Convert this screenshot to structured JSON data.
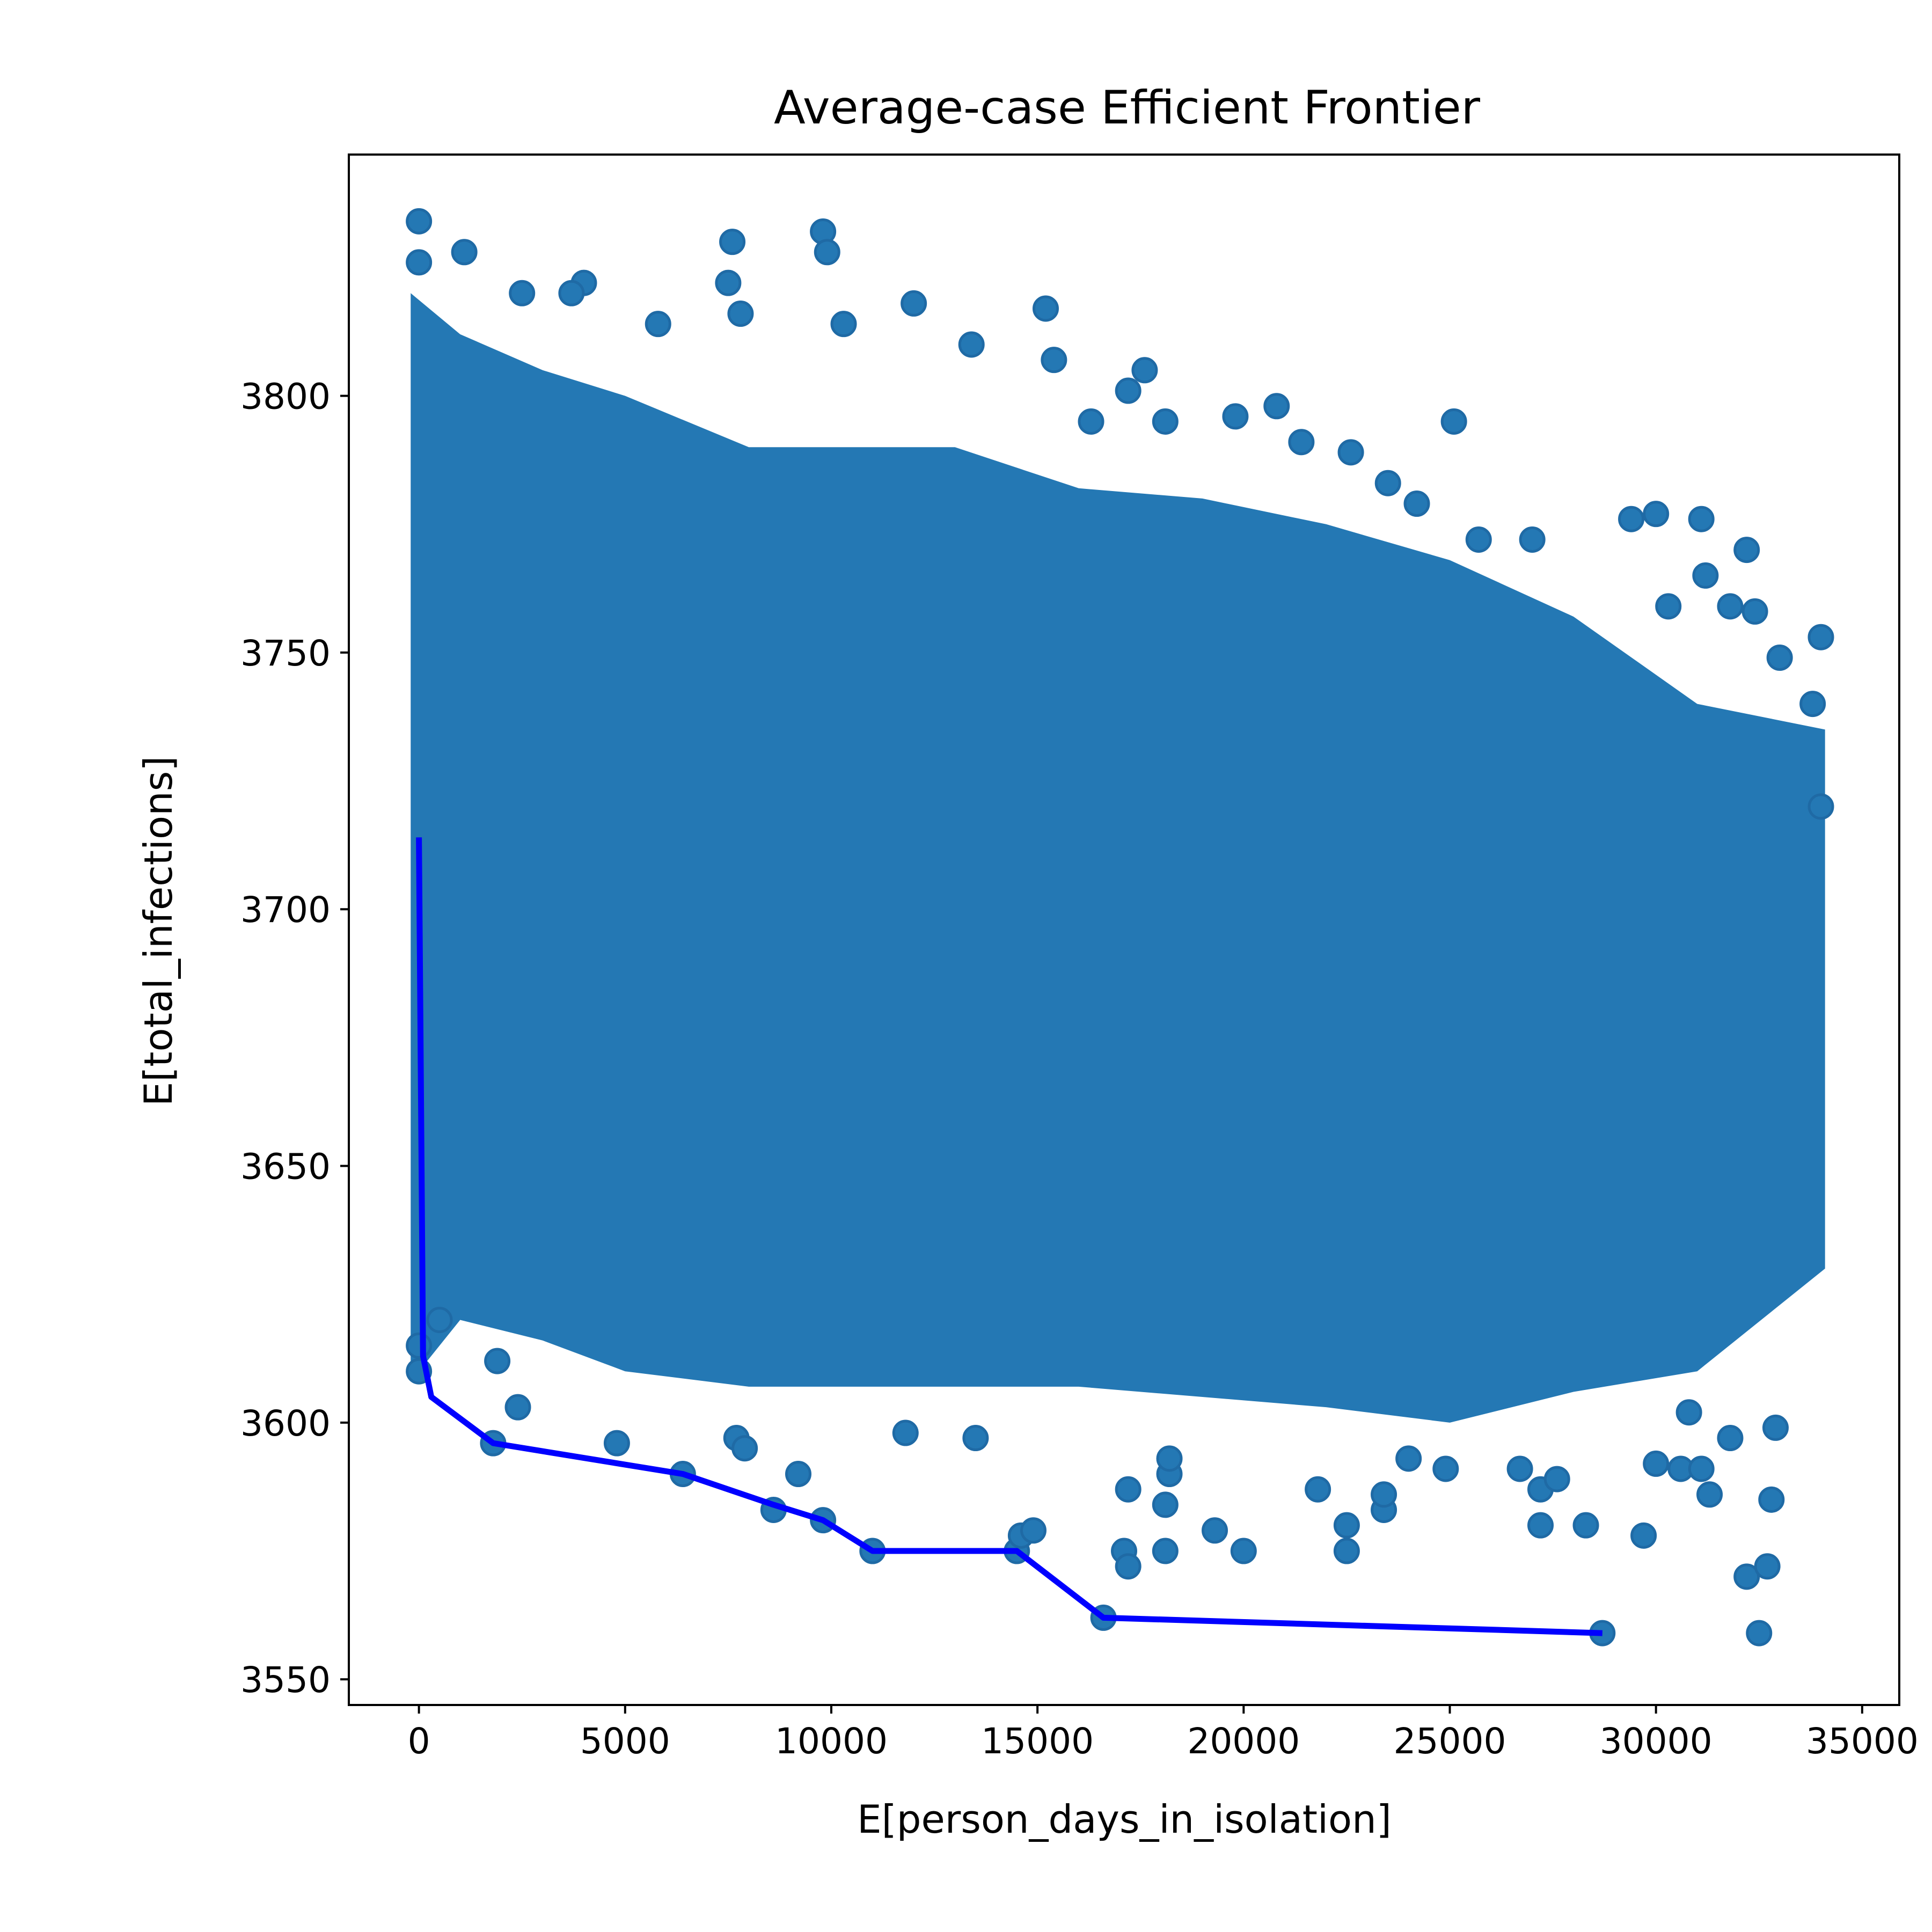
{
  "chart_data": {
    "type": "scatter",
    "title": "Average-case Efficient Frontier",
    "xlabel": "E[person_days_in_isolation]",
    "ylabel": "E[total_infections]",
    "xlim": [
      -1700,
      35900
    ],
    "ylim": [
      3545,
      3847
    ],
    "xticks": [
      0,
      5000,
      10000,
      15000,
      20000,
      25000,
      30000,
      35000
    ],
    "yticks": [
      3550,
      3600,
      3650,
      3700,
      3750,
      3800
    ],
    "grid": false,
    "legend": "none",
    "colors": {
      "scatter": "#2478b4",
      "frontier": "#0000ff"
    },
    "scatter_cloud": {
      "x_min": -200,
      "x_max": 34100,
      "y_lower": [
        [
          -200,
          3608
        ],
        [
          1000,
          3620
        ],
        [
          3000,
          3616
        ],
        [
          5000,
          3610
        ],
        [
          8000,
          3607
        ],
        [
          10000,
          3607
        ],
        [
          13000,
          3607
        ],
        [
          16000,
          3607
        ],
        [
          19000,
          3605
        ],
        [
          22000,
          3603
        ],
        [
          25000,
          3600
        ],
        [
          28000,
          3606
        ],
        [
          31000,
          3610
        ],
        [
          34100,
          3630
        ]
      ],
      "y_upper": [
        [
          -200,
          3820
        ],
        [
          1000,
          3812
        ],
        [
          3000,
          3805
        ],
        [
          5000,
          3800
        ],
        [
          8000,
          3790
        ],
        [
          10000,
          3790
        ],
        [
          13000,
          3790
        ],
        [
          16000,
          3782
        ],
        [
          19000,
          3780
        ],
        [
          22000,
          3775
        ],
        [
          25000,
          3768
        ],
        [
          28000,
          3757
        ],
        [
          31000,
          3740
        ],
        [
          34100,
          3735
        ]
      ]
    },
    "scatter_points": [
      {
        "x": 0,
        "y": 3834
      },
      {
        "x": 0,
        "y": 3826
      },
      {
        "x": 1100,
        "y": 3828
      },
      {
        "x": 2500,
        "y": 3820
      },
      {
        "x": 4000,
        "y": 3822
      },
      {
        "x": 3700,
        "y": 3820
      },
      {
        "x": 5800,
        "y": 3814
      },
      {
        "x": 7600,
        "y": 3830
      },
      {
        "x": 7500,
        "y": 3822
      },
      {
        "x": 7800,
        "y": 3816
      },
      {
        "x": 9800,
        "y": 3832
      },
      {
        "x": 9900,
        "y": 3828
      },
      {
        "x": 10300,
        "y": 3814
      },
      {
        "x": 12000,
        "y": 3818
      },
      {
        "x": 13400,
        "y": 3810
      },
      {
        "x": 15200,
        "y": 3817
      },
      {
        "x": 15400,
        "y": 3807
      },
      {
        "x": 17600,
        "y": 3805
      },
      {
        "x": 17200,
        "y": 3801
      },
      {
        "x": 18100,
        "y": 3795
      },
      {
        "x": 16300,
        "y": 3795
      },
      {
        "x": 19800,
        "y": 3796
      },
      {
        "x": 20800,
        "y": 3798
      },
      {
        "x": 21400,
        "y": 3791
      },
      {
        "x": 22600,
        "y": 3789
      },
      {
        "x": 23500,
        "y": 3783
      },
      {
        "x": 24200,
        "y": 3779
      },
      {
        "x": 25100,
        "y": 3795
      },
      {
        "x": 25700,
        "y": 3772
      },
      {
        "x": 27000,
        "y": 3772
      },
      {
        "x": 29400,
        "y": 3776
      },
      {
        "x": 30000,
        "y": 3777
      },
      {
        "x": 31100,
        "y": 3776
      },
      {
        "x": 32200,
        "y": 3770
      },
      {
        "x": 31200,
        "y": 3765
      },
      {
        "x": 30300,
        "y": 3759
      },
      {
        "x": 32400,
        "y": 3758
      },
      {
        "x": 31800,
        "y": 3759
      },
      {
        "x": 34000,
        "y": 3753
      },
      {
        "x": 33800,
        "y": 3740
      },
      {
        "x": 34000,
        "y": 3720
      },
      {
        "x": 33000,
        "y": 3749
      },
      {
        "x": 1800,
        "y": 3596
      },
      {
        "x": 2400,
        "y": 3603
      },
      {
        "x": 4800,
        "y": 3596
      },
      {
        "x": 6400,
        "y": 3590
      },
      {
        "x": 7700,
        "y": 3597
      },
      {
        "x": 7900,
        "y": 3595
      },
      {
        "x": 8600,
        "y": 3583
      },
      {
        "x": 9200,
        "y": 3590
      },
      {
        "x": 9800,
        "y": 3581
      },
      {
        "x": 11000,
        "y": 3575
      },
      {
        "x": 11800,
        "y": 3598
      },
      {
        "x": 13500,
        "y": 3597
      },
      {
        "x": 14500,
        "y": 3575
      },
      {
        "x": 14600,
        "y": 3578
      },
      {
        "x": 14900,
        "y": 3579
      },
      {
        "x": 16600,
        "y": 3562
      },
      {
        "x": 17100,
        "y": 3575
      },
      {
        "x": 17200,
        "y": 3572
      },
      {
        "x": 17200,
        "y": 3587
      },
      {
        "x": 18100,
        "y": 3575
      },
      {
        "x": 18100,
        "y": 3584
      },
      {
        "x": 18200,
        "y": 3590
      },
      {
        "x": 18200,
        "y": 3593
      },
      {
        "x": 19300,
        "y": 3579
      },
      {
        "x": 20000,
        "y": 3575
      },
      {
        "x": 21800,
        "y": 3587
      },
      {
        "x": 22500,
        "y": 3575
      },
      {
        "x": 22500,
        "y": 3580
      },
      {
        "x": 23400,
        "y": 3583
      },
      {
        "x": 23400,
        "y": 3586
      },
      {
        "x": 24000,
        "y": 3593
      },
      {
        "x": 24900,
        "y": 3591
      },
      {
        "x": 26700,
        "y": 3591
      },
      {
        "x": 27200,
        "y": 3580
      },
      {
        "x": 27200,
        "y": 3587
      },
      {
        "x": 27600,
        "y": 3589
      },
      {
        "x": 28300,
        "y": 3580
      },
      {
        "x": 28700,
        "y": 3559
      },
      {
        "x": 29700,
        "y": 3578
      },
      {
        "x": 30000,
        "y": 3592
      },
      {
        "x": 30600,
        "y": 3591
      },
      {
        "x": 31100,
        "y": 3591
      },
      {
        "x": 31300,
        "y": 3586
      },
      {
        "x": 32200,
        "y": 3570
      },
      {
        "x": 32500,
        "y": 3559
      },
      {
        "x": 32700,
        "y": 3572
      },
      {
        "x": 32800,
        "y": 3585
      },
      {
        "x": 32900,
        "y": 3599
      },
      {
        "x": 31800,
        "y": 3597
      },
      {
        "x": 30800,
        "y": 3602
      },
      {
        "x": 0,
        "y": 3610
      },
      {
        "x": 0,
        "y": 3615
      },
      {
        "x": 500,
        "y": 3620
      },
      {
        "x": 1900,
        "y": 3612
      }
    ],
    "series": [
      {
        "type": "line",
        "x": [
          0,
          100,
          300,
          1800,
          6400,
          8600,
          9800,
          11000,
          14500,
          16600,
          28700
        ],
        "y": [
          3714,
          3613,
          3605,
          3596,
          3590,
          3584,
          3581,
          3575,
          3575,
          3562,
          3559
        ]
      }
    ]
  }
}
